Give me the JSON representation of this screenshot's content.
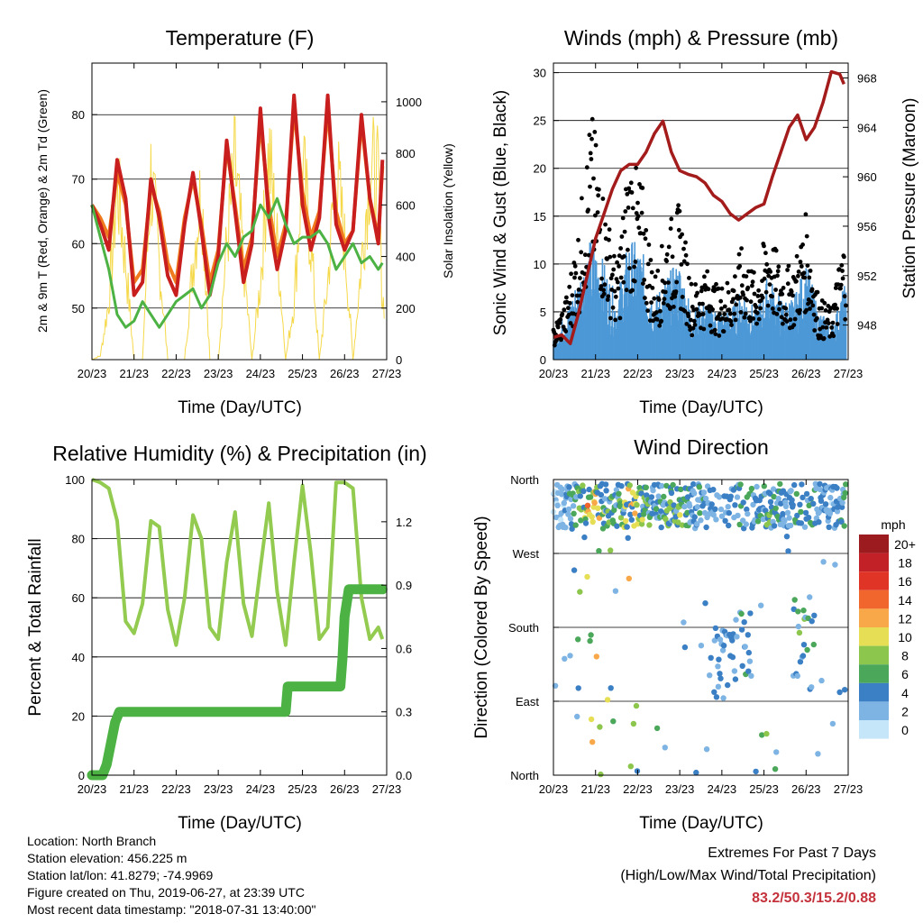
{
  "colors": {
    "temp_2m": "#c81e1e",
    "temp_9m": "#f07a1e",
    "dewpoint": "#4cb244",
    "solar": "#f5d94a",
    "wind": "#4d98d6",
    "gust": "#000000",
    "pressure": "#a31b1b",
    "rh": "#92cb4f",
    "precip": "#4cb244"
  },
  "x_ticks": [
    "20/23",
    "21/23",
    "22/23",
    "23/23",
    "24/23",
    "25/23",
    "26/23",
    "27/23"
  ],
  "footer": {
    "location": "Location: North Branch",
    "elevation": "Station elevation: 456.225 m",
    "latlon": "Station lat/lon: 41.8279; -74.9969",
    "created": "Figure created on Thu, 2019-06-27, at 23:39 UTC",
    "timestamp": "Most recent data timestamp: \"2018-07-31 13:40:00\""
  },
  "extremes": {
    "title": "Extremes For Past 7 Days",
    "subtitle": "(High/Low/Max Wind/Total Precipitation)",
    "values": "83.2/50.3/15.2/0.88"
  },
  "chart_data": [
    {
      "id": "temperature",
      "type": "line",
      "title": "Temperature (F)",
      "xlabel": "Time (Day/UTC)",
      "ylabel": "2m & 9m T (Red, Orange) & 2m Td (Green)",
      "ylabel_right": "Solar Insolation (Yellow)",
      "x_ticks": [
        "20/23",
        "21/23",
        "22/23",
        "23/23",
        "24/23",
        "25/23",
        "26/23",
        "27/23"
      ],
      "ylim": [
        42,
        88
      ],
      "yticks": [
        50,
        60,
        70,
        80
      ],
      "ylim_right": [
        0,
        1150
      ],
      "yticks_right": [
        0,
        200,
        400,
        600,
        800,
        1000
      ],
      "x_days": [
        0,
        0.2,
        0.4,
        0.6,
        0.8,
        1.0,
        1.2,
        1.4,
        1.6,
        1.8,
        2.0,
        2.2,
        2.4,
        2.6,
        2.8,
        3.0,
        3.2,
        3.4,
        3.6,
        3.8,
        4.0,
        4.2,
        4.4,
        4.6,
        4.8,
        5.0,
        5.2,
        5.4,
        5.6,
        5.8,
        6.0,
        6.2,
        6.4,
        6.6,
        6.8,
        6.9
      ],
      "series": [
        {
          "values": [
            66,
            63,
            59,
            73,
            67,
            52,
            54,
            70,
            64,
            55,
            52,
            63,
            71,
            62,
            52,
            58,
            76,
            65,
            54,
            60,
            81,
            64,
            56,
            62,
            83,
            66,
            59,
            64,
            83,
            63,
            59,
            62,
            80,
            67,
            60,
            73
          ]
        },
        {
          "values": [
            66,
            64,
            61,
            71,
            66,
            54,
            56,
            69,
            65,
            57,
            54,
            64,
            70,
            63,
            54,
            59,
            75,
            66,
            56,
            61,
            79,
            66,
            58,
            63,
            81,
            68,
            61,
            65,
            81,
            65,
            60,
            62,
            79,
            67,
            61,
            72
          ]
        },
        {
          "values": [
            66,
            61,
            56,
            49,
            47,
            48,
            51,
            49,
            47,
            49,
            51,
            52,
            53,
            50,
            52,
            57,
            60,
            58,
            61,
            62,
            66,
            64,
            67,
            63,
            60,
            61,
            61,
            62,
            60,
            56,
            58,
            60,
            57,
            58,
            56,
            57
          ]
        },
        {
          "values": [
            0,
            20,
            300,
            910,
            500,
            0,
            0,
            960,
            500,
            0,
            0,
            0,
            500,
            900,
            0,
            0,
            600,
            1000,
            500,
            0,
            400,
            1080,
            600,
            0,
            300,
            1000,
            600,
            0,
            400,
            1000,
            600,
            0,
            500,
            1000,
            900,
            300
          ]
        }
      ]
    },
    {
      "id": "winds",
      "type": "scatter",
      "title": "Winds (mph) & Pressure (mb)",
      "xlabel": "Time (Day/UTC)",
      "ylabel": "Sonic Wind & Gust (Blue, Black)",
      "ylabel_right": "Station Pressure (Maroon)",
      "x_ticks": [
        "20/23",
        "21/23",
        "22/23",
        "23/23",
        "24/23",
        "25/23",
        "26/23",
        "27/23"
      ],
      "ylim": [
        0,
        31
      ],
      "yticks": [
        0,
        5,
        10,
        15,
        20,
        25,
        30
      ],
      "ylim_right": [
        945.2,
        969.2
      ],
      "yticks_right": [
        948,
        952,
        956,
        960,
        964,
        968
      ],
      "wind_envelope": {
        "x_days": [
          0,
          0.3,
          0.6,
          0.9,
          1.2,
          1.5,
          1.8,
          2.1,
          2.4,
          2.7,
          3.0,
          3.3,
          3.6,
          3.9,
          4.2,
          4.5,
          4.8,
          5.1,
          5.4,
          5.7,
          6.0,
          6.3,
          6.6,
          6.9
        ],
        "values": [
          2,
          4,
          7,
          10,
          8,
          5,
          10,
          9,
          5,
          7,
          8,
          4,
          5,
          4,
          4,
          6,
          4,
          7,
          5,
          5,
          8,
          4,
          3,
          6
        ]
      },
      "gust_envelope": {
        "x_days": [
          0,
          0.3,
          0.6,
          0.9,
          1.2,
          1.5,
          1.8,
          2.1,
          2.4,
          2.7,
          3.0,
          3.3,
          3.6,
          3.9,
          4.2,
          4.5,
          4.8,
          5.1,
          5.4,
          5.7,
          6.0,
          6.3,
          6.6,
          6.9
        ],
        "values": [
          3,
          6,
          13,
          24,
          16,
          9,
          20,
          17,
          8,
          13,
          15,
          7,
          9,
          7,
          8,
          11,
          8,
          13,
          9,
          9,
          14,
          6,
          5,
          12
        ]
      },
      "pressure": {
        "x_days": [
          0,
          0.2,
          0.4,
          0.6,
          0.8,
          1.0,
          1.2,
          1.4,
          1.6,
          1.8,
          2.0,
          2.2,
          2.4,
          2.6,
          2.8,
          3.0,
          3.2,
          3.4,
          3.6,
          3.8,
          4.0,
          4.2,
          4.4,
          4.6,
          4.8,
          5.0,
          5.2,
          5.4,
          5.6,
          5.8,
          6.0,
          6.2,
          6.4,
          6.6,
          6.8,
          6.9
        ],
        "values": [
          947,
          947.2,
          946.5,
          949,
          952,
          955,
          957,
          959,
          960.5,
          961,
          961,
          962,
          963.5,
          964.5,
          962,
          960.5,
          960.2,
          960,
          959.5,
          958.5,
          958,
          957,
          956.5,
          957,
          957.5,
          957.8,
          960,
          962,
          964,
          965,
          963,
          964,
          966,
          968.5,
          968.3,
          967.5
        ]
      }
    },
    {
      "id": "humidity",
      "type": "line",
      "title": "Relative Humidity (%) & Precipitation (in)",
      "xlabel": "Time (Day/UTC)",
      "ylabel": "Percent & Total Rainfall",
      "x_ticks": [
        "20/23",
        "21/23",
        "22/23",
        "23/23",
        "24/23",
        "25/23",
        "26/23",
        "27/23"
      ],
      "ylim": [
        0,
        100
      ],
      "yticks": [
        0,
        20,
        40,
        60,
        80,
        100
      ],
      "ylim_right": [
        0,
        1.4
      ],
      "yticks_right": [
        "0.0",
        "0.3",
        "0.6",
        "0.9",
        "1.2"
      ],
      "series": [
        {
          "name": "rh",
          "x_days": [
            0,
            0.2,
            0.4,
            0.6,
            0.8,
            1.0,
            1.2,
            1.4,
            1.6,
            1.8,
            2.0,
            2.2,
            2.4,
            2.6,
            2.8,
            3.0,
            3.2,
            3.4,
            3.6,
            3.8,
            4.0,
            4.2,
            4.4,
            4.6,
            4.8,
            5.0,
            5.2,
            5.4,
            5.6,
            5.8,
            6.0,
            6.2,
            6.4,
            6.6,
            6.8,
            6.9
          ],
          "values": [
            100,
            99,
            97,
            86,
            52,
            48,
            58,
            86,
            84,
            56,
            44,
            60,
            88,
            80,
            50,
            46,
            72,
            89,
            58,
            47,
            70,
            92,
            62,
            44,
            72,
            98,
            75,
            46,
            50,
            99,
            99,
            97,
            60,
            46,
            50,
            46
          ]
        },
        {
          "name": "precip",
          "x_days": [
            0,
            0.25,
            0.35,
            0.45,
            0.55,
            0.65,
            0.8,
            1.0,
            1.5,
            2.0,
            3.0,
            4.0,
            4.6,
            4.65,
            5.0,
            5.5,
            5.9,
            5.95,
            6.0,
            6.1,
            6.5,
            6.9
          ],
          "values": [
            0,
            0,
            0.05,
            0.15,
            0.25,
            0.3,
            0.3,
            0.3,
            0.3,
            0.3,
            0.3,
            0.3,
            0.3,
            0.42,
            0.42,
            0.42,
            0.42,
            0.55,
            0.75,
            0.88,
            0.88,
            0.88
          ]
        }
      ]
    },
    {
      "id": "wind_direction",
      "type": "scatter",
      "title": "Wind Direction",
      "xlabel": "Time (Day/UTC)",
      "ylabel": "Direction (Colored By Speed)",
      "x_ticks": [
        "20/23",
        "21/23",
        "22/23",
        "23/23",
        "24/23",
        "25/23",
        "26/23",
        "27/23"
      ],
      "ylim": [
        0,
        360
      ],
      "yticks": [
        "North",
        "East",
        "South",
        "West",
        "North"
      ],
      "legend_title": "mph",
      "legend_labels": [
        "20+",
        "18",
        "16",
        "14",
        "12",
        "10",
        "8",
        "6",
        "4",
        "2",
        "0"
      ],
      "legend_colors": [
        "#9b1b1e",
        "#c22127",
        "#e03526",
        "#f0662d",
        "#f8a848",
        "#e6df55",
        "#8cc64d",
        "#4ba85b",
        "#3b7fc4",
        "#7eb4e3",
        "#c5e5f8"
      ],
      "legend_position": "right"
    }
  ]
}
